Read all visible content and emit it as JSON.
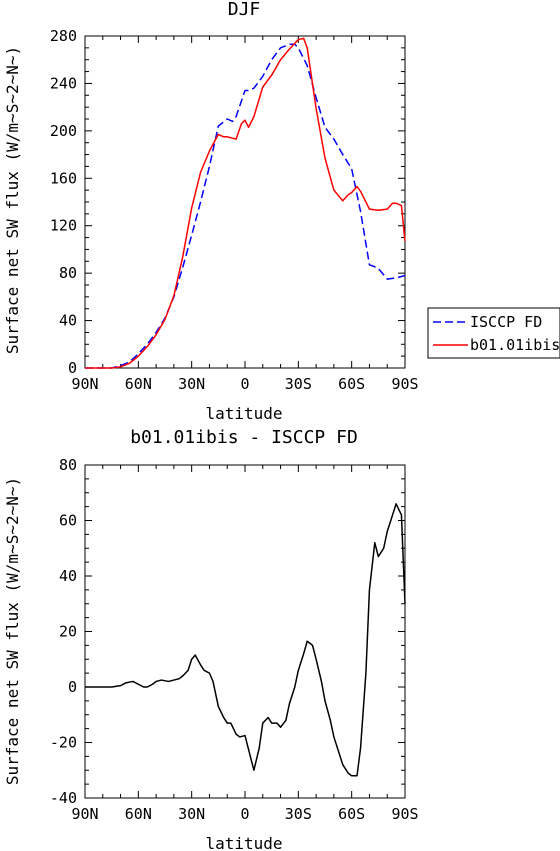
{
  "chart_data": [
    {
      "type": "line",
      "title": "DJF",
      "xlabel": "latitude",
      "ylabel": "Surface net SW flux (W/m~S~2~N~)",
      "xlim": [
        -90,
        90
      ],
      "ylim": [
        0,
        280
      ],
      "xticks": [
        -90,
        -60,
        -30,
        0,
        30,
        60,
        90
      ],
      "xtick_labels": [
        "90N",
        "60N",
        "30N",
        "0",
        "30S",
        "60S",
        "90S"
      ],
      "yticks": [
        0,
        40,
        80,
        120,
        160,
        200,
        240,
        280
      ],
      "ytick_labels": [
        "0",
        "40",
        "80",
        "120",
        "160",
        "200",
        "240",
        "280"
      ],
      "legend_position": "right",
      "series": [
        {
          "name": "ISCCP FD",
          "color": "#0000ff",
          "dash": "dashed",
          "x": [
            -90,
            -80,
            -75,
            -70,
            -65,
            -60,
            -55,
            -50,
            -45,
            -40,
            -35,
            -30,
            -25,
            -20,
            -15,
            -10,
            -7,
            -5,
            0,
            2,
            5,
            10,
            15,
            20,
            25,
            28,
            30,
            35,
            40,
            45,
            50,
            55,
            60,
            65,
            70,
            72,
            75,
            80,
            85,
            90
          ],
          "y": [
            0,
            0,
            0,
            2,
            5,
            12,
            20,
            30,
            42,
            60,
            85,
            112,
            140,
            170,
            204,
            210,
            208,
            212,
            234,
            234,
            236,
            246,
            260,
            270,
            273,
            273,
            270,
            255,
            228,
            203,
            193,
            180,
            168,
            132,
            87,
            86,
            84,
            75,
            76,
            78
          ]
        },
        {
          "name": "b01.01ibis",
          "color": "#ff0000",
          "dash": "solid",
          "x": [
            -90,
            -75,
            -70,
            -65,
            -60,
            -55,
            -50,
            -45,
            -40,
            -35,
            -30,
            -25,
            -20,
            -15,
            -12,
            -10,
            -5,
            -2,
            0,
            2,
            5,
            10,
            15,
            20,
            25,
            30,
            33,
            35,
            40,
            45,
            50,
            55,
            58,
            60,
            63,
            65,
            68,
            70,
            75,
            80,
            83,
            85,
            88,
            90
          ],
          "y": [
            0,
            0,
            1,
            4,
            10,
            18,
            28,
            41,
            61,
            94,
            135,
            165,
            183,
            197,
            195,
            195,
            193,
            206,
            209,
            203,
            212,
            237,
            247,
            260,
            269,
            277,
            278,
            270,
            219,
            177,
            150,
            141,
            146,
            148,
            153,
            149,
            140,
            134,
            133,
            134,
            139,
            139,
            137,
            107
          ]
        }
      ]
    },
    {
      "type": "line",
      "title": "b01.01ibis - ISCCP FD",
      "xlabel": "latitude",
      "ylabel": "Surface net SW flux (W/m~S~2~N~)",
      "xlim": [
        -90,
        90
      ],
      "ylim": [
        -40,
        80
      ],
      "xticks": [
        -90,
        -60,
        -30,
        0,
        30,
        60,
        90
      ],
      "xtick_labels": [
        "90N",
        "60N",
        "30N",
        "0",
        "30S",
        "60S",
        "90S"
      ],
      "yticks": [
        -40,
        -20,
        0,
        20,
        40,
        60,
        80
      ],
      "ytick_labels": [
        "-40",
        "-20",
        "0",
        "20",
        "40",
        "60",
        "80"
      ],
      "series": [
        {
          "color": "#000000",
          "dash": "solid",
          "x": [
            -90,
            -80,
            -75,
            -70,
            -67,
            -63,
            -60,
            -57,
            -55,
            -52,
            -50,
            -47,
            -43,
            -40,
            -37,
            -35,
            -32,
            -30,
            -28,
            -25,
            -23,
            -20,
            -18,
            -15,
            -12,
            -10,
            -8,
            -5,
            -3,
            0,
            3,
            5,
            8,
            10,
            13,
            15,
            18,
            20,
            23,
            25,
            28,
            30,
            33,
            35,
            38,
            40,
            43,
            45,
            48,
            50,
            53,
            55,
            58,
            60,
            63,
            65,
            68,
            70,
            73,
            75,
            78,
            80,
            83,
            85,
            88,
            90
          ],
          "y": [
            0,
            0,
            0,
            0.5,
            1.5,
            2,
            1,
            0,
            0,
            1,
            2,
            2.5,
            2,
            2.5,
            3,
            4,
            6,
            10,
            11.5,
            8,
            6,
            5,
            2,
            -7,
            -11,
            -13,
            -13,
            -17,
            -18,
            -17.5,
            -25,
            -30,
            -22,
            -13,
            -11,
            -13,
            -13,
            -14.5,
            -12,
            -6,
            0,
            6,
            12,
            16.5,
            15,
            10,
            2,
            -5,
            -12,
            -18,
            -24,
            -28,
            -31,
            -32,
            -32,
            -22,
            5,
            35,
            52,
            47,
            50,
            56,
            62,
            66,
            62,
            30
          ]
        }
      ]
    }
  ]
}
